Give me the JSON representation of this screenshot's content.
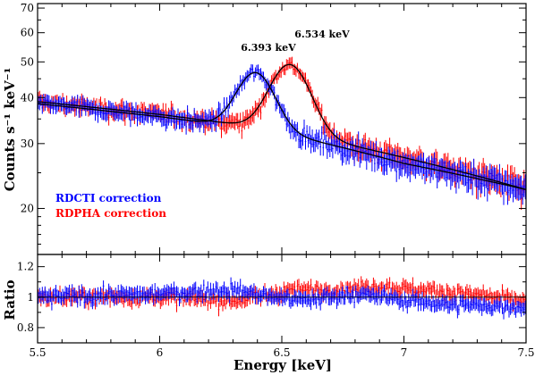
{
  "chart_data": [
    {
      "type": "line",
      "ylabel": "Counts s⁻¹ keV⁻¹",
      "yscale": "log",
      "xlim": [
        5.5,
        7.5
      ],
      "ylim": [
        15,
        72
      ],
      "y_ticks": [
        {
          "value": 20,
          "label": "20"
        },
        {
          "value": 30,
          "label": "30"
        },
        {
          "value": 40,
          "label": "40"
        },
        {
          "value": 50,
          "label": "50"
        },
        {
          "value": 60,
          "label": "60"
        },
        {
          "value": 70,
          "label": "70"
        }
      ],
      "annotations": [
        "6.393 keV",
        "6.534 keV"
      ],
      "legend": {
        "placement": "bottom-left"
      },
      "series": [
        {
          "name": "RDCTI correction",
          "color": "#0000ff",
          "model": {
            "continuum": {
              "x": [
                5.5,
                6.0,
                6.5,
                7.0,
                7.5
              ],
              "y": [
                38.5,
                35.5,
                32.0,
                26.5,
                22.5
              ]
            },
            "line_center": 6.393,
            "line_amplitude": 14.0,
            "line_sigma": 0.075
          },
          "noise": 1.2
        },
        {
          "name": "RDPHA correction",
          "color": "#ff0000",
          "model": {
            "continuum": {
              "x": [
                5.5,
                6.0,
                6.5,
                7.0,
                7.5
              ],
              "y": [
                39.0,
                36.0,
                32.5,
                27.5,
                22.5
              ]
            },
            "line_center": 6.534,
            "line_amplitude": 17.0,
            "line_sigma": 0.08
          },
          "noise": 1.2
        }
      ]
    },
    {
      "type": "line",
      "xlabel": "Energy [keV]",
      "ylabel": "Ratio",
      "xlim": [
        5.5,
        7.5
      ],
      "ylim": [
        0.7,
        1.28
      ],
      "x_ticks": [
        {
          "value": 5.5,
          "label": "5.5"
        },
        {
          "value": 6.0,
          "label": "6"
        },
        {
          "value": 6.5,
          "label": "6.5"
        },
        {
          "value": 7.0,
          "label": "7"
        },
        {
          "value": 7.5,
          "label": "7.5"
        }
      ],
      "y_ticks": [
        {
          "value": 0.8,
          "label": "0.8"
        },
        {
          "value": 1.0,
          "label": "1"
        },
        {
          "value": 1.2,
          "label": "1.2"
        }
      ],
      "reference_line": 1.0,
      "series": [
        {
          "color": "#0000ff",
          "x": [
            5.5,
            6.0,
            6.3,
            6.45,
            6.6,
            6.8,
            7.0,
            7.2,
            7.5
          ],
          "y": [
            1.0,
            1.02,
            1.05,
            1.0,
            0.98,
            1.02,
            0.98,
            0.95,
            0.93
          ]
        },
        {
          "color": "#ff0000",
          "x": [
            5.5,
            6.0,
            6.3,
            6.5,
            6.7,
            6.9,
            7.2,
            7.5
          ],
          "y": [
            1.0,
            1.0,
            0.97,
            1.04,
            1.05,
            1.07,
            1.03,
            0.97
          ]
        }
      ]
    }
  ]
}
